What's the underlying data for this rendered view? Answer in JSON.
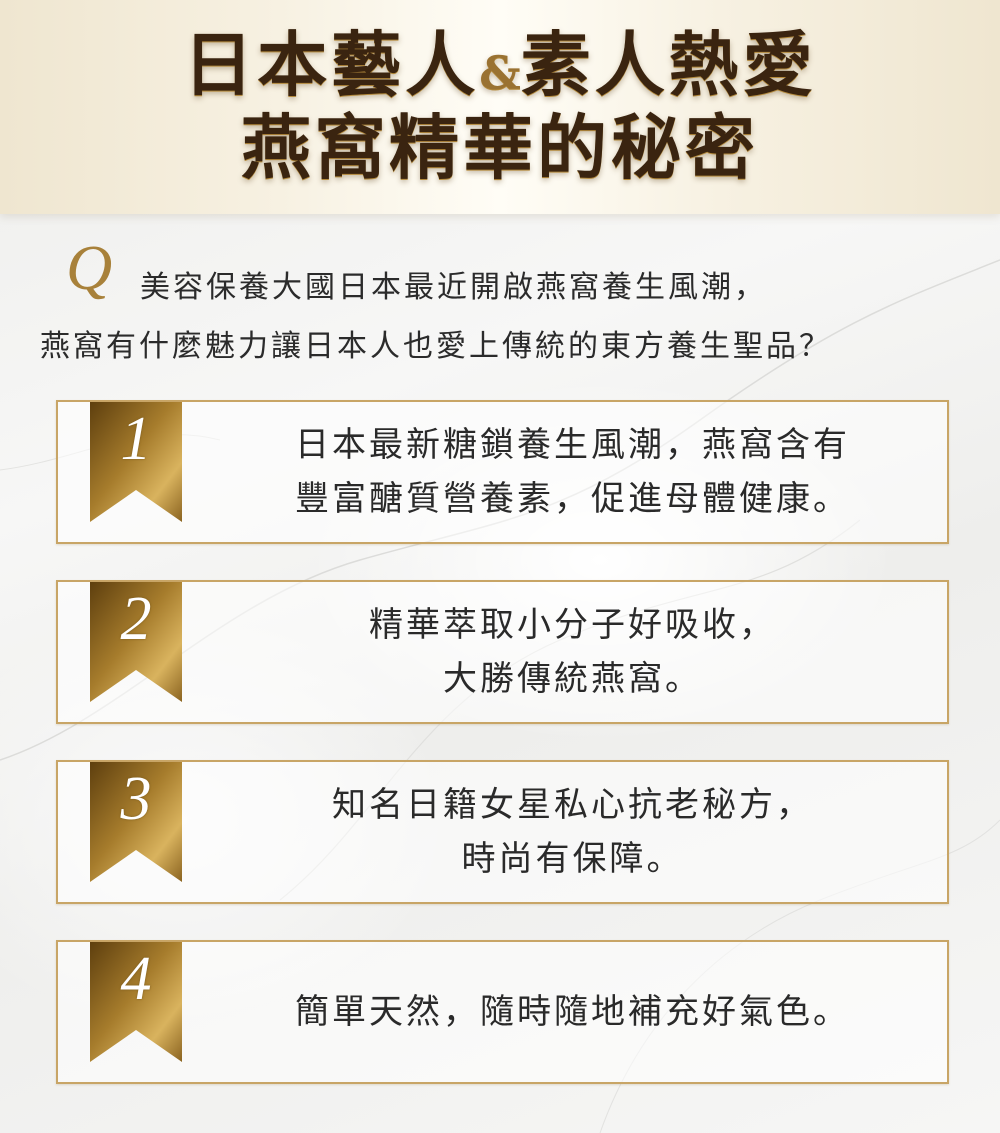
{
  "header": {
    "line1_a": "日本藝人",
    "line1_amp": "&",
    "line1_b": "素人熱愛",
    "line2": "燕窩精華的秘密"
  },
  "question": {
    "letter": "Q",
    "line1": "美容保養大國日本最近開啟燕窩養生風潮，",
    "line2": "燕窩有什麼魅力讓日本人也愛上傳統的東方養生聖品？"
  },
  "points": [
    {
      "number": "1",
      "lines": [
        "日本最新糖鎖養生風潮，燕窩含有",
        "豐富醣質營養素，促進母體健康。"
      ]
    },
    {
      "number": "2",
      "lines": [
        "精華萃取小分子好吸收，",
        "大勝傳統燕窩。"
      ]
    },
    {
      "number": "3",
      "lines": [
        "知名日籍女星私心抗老秘方，",
        "時尚有保障。"
      ]
    },
    {
      "number": "4",
      "lines": [
        "簡單天然，隨時隨地補充好氣色。"
      ]
    }
  ],
  "colors": {
    "gold": "#c8a566",
    "gold_dark": "#6b4a14",
    "title_brown": "#3a2410"
  }
}
